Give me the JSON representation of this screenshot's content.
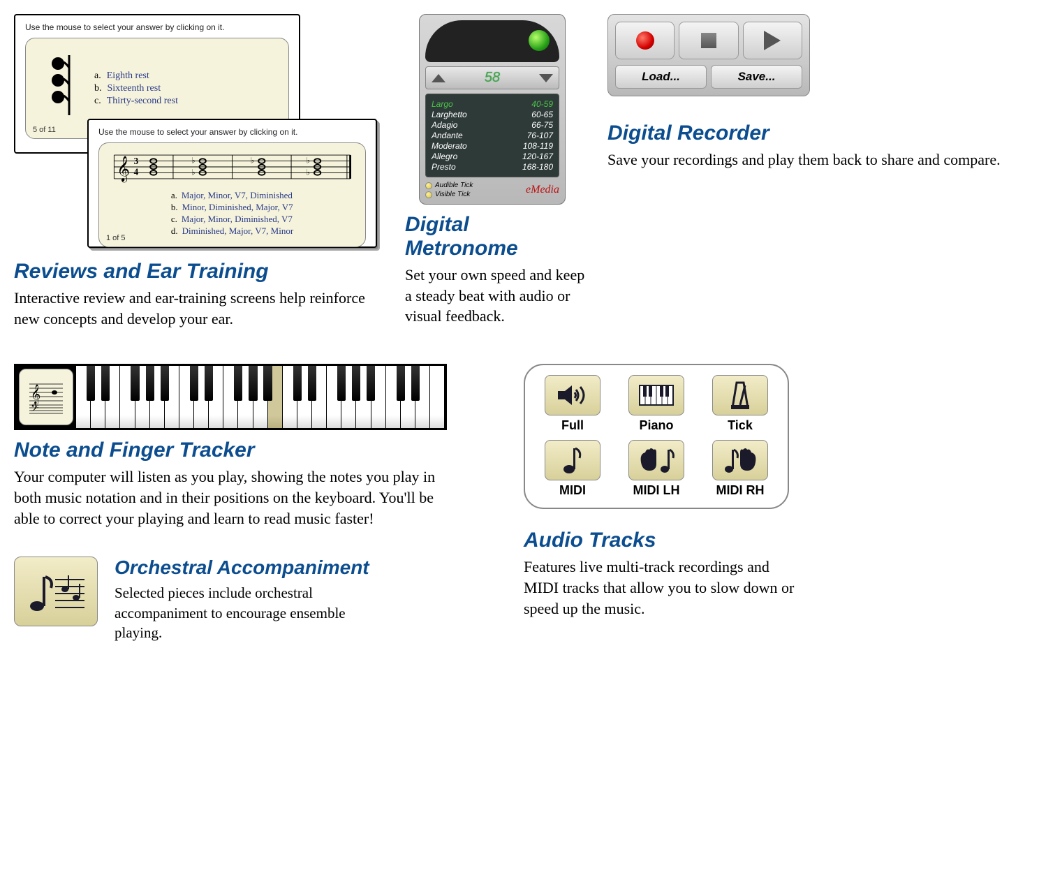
{
  "colors": {
    "heading": "#0b4d8f",
    "body": "#000000",
    "link": "#2a3a8a",
    "card_bg": "#f5f3db",
    "metronome_bg_top": "#d8d8d8",
    "metronome_bg_bot": "#b8b8b8",
    "metronome_lcd": "#2e3a38",
    "metronome_sel": "#4cc24a",
    "led_green": "#2aa319",
    "led_yellow": "#d6c642",
    "rec_red": "#d40000",
    "audio_btn_top": "#f2ecc8",
    "audio_btn_bot": "#d8d09a"
  },
  "fonts": {
    "heading_family": "Arial, Helvetica, sans-serif",
    "body_family": "Georgia, serif",
    "heading_size_pt": 22,
    "body_size_pt": 16
  },
  "ear_training": {
    "title": "Reviews and Ear Training",
    "body": "Interactive review and ear-training screens help reinforce new concepts and develop your ear.",
    "card1": {
      "instruction": "Use the mouse to select your answer by clicking on it.",
      "pager": "5 of 11",
      "options": [
        {
          "letter": "a.",
          "text": "Eighth rest"
        },
        {
          "letter": "b.",
          "text": "Sixteenth rest"
        },
        {
          "letter": "c.",
          "text": "Thirty-second rest"
        }
      ]
    },
    "card2": {
      "instruction": "Use the mouse to select your answer by clicking on it.",
      "pager": "1 of 5",
      "options": [
        {
          "letter": "a.",
          "text": "Major,  Minor,  V7,  Diminished"
        },
        {
          "letter": "b.",
          "text": "Minor,  Diminished,  Major,  V7"
        },
        {
          "letter": "c.",
          "text": "Major,  Minor,  Diminished,  V7"
        },
        {
          "letter": "d.",
          "text": "Diminished,  Major,  V7,  Minor"
        }
      ]
    }
  },
  "metronome": {
    "title": "Digital Metronome",
    "body": "Set your own speed and keep a steady beat with audio or visual feedback.",
    "bpm": "58",
    "tempos": [
      {
        "name": "Largo",
        "range": "40-59",
        "selected": true
      },
      {
        "name": "Larghetto",
        "range": "60-65"
      },
      {
        "name": "Adagio",
        "range": "66-75"
      },
      {
        "name": "Andante",
        "range": "76-107"
      },
      {
        "name": "Moderato",
        "range": "108-119"
      },
      {
        "name": "Allegro",
        "range": "120-167"
      },
      {
        "name": "Presto",
        "range": "168-180"
      }
    ],
    "audible_label": "Audible Tick",
    "visible_label": "Visible Tick",
    "brand": "eMedia"
  },
  "recorder": {
    "title": "Digital Recorder",
    "body": "Save your recordings and play them back to share and compare.",
    "load_label": "Load...",
    "save_label": "Save..."
  },
  "tracker": {
    "title": "Note and Finger Tracker",
    "body": "Your computer will listen as you play, showing the notes you play in both music notation and in their positions on the keyboard. You'll be able to correct your playing and learn to read music faster!"
  },
  "audio": {
    "title": "Audio Tracks",
    "body": "Features live multi-track recordings and MIDI tracks that allow you to slow down or speed up the music.",
    "buttons": [
      "Full",
      "Piano",
      "Tick",
      "MIDI",
      "MIDI LH",
      "MIDI RH"
    ]
  },
  "orchestral": {
    "title": "Orchestral Accompaniment",
    "body": "Selected pieces include orchestral accompaniment to encourage ensemble playing."
  }
}
